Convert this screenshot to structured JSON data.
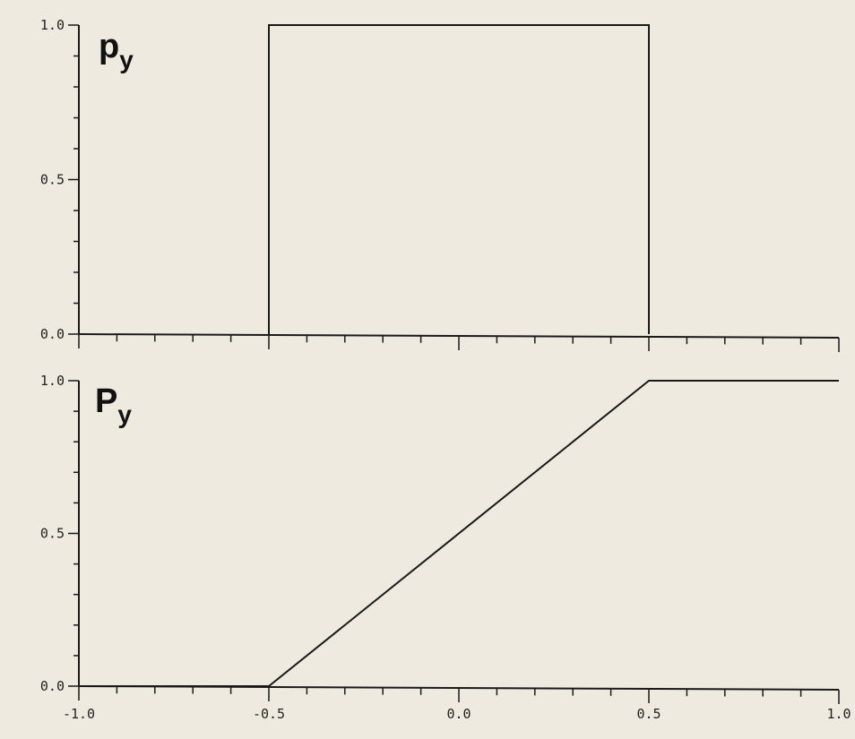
{
  "chart_data": [
    {
      "type": "line",
      "title": "",
      "panel_label": {
        "main": "p",
        "sub": "y"
      },
      "xlabel": "",
      "ylabel": "",
      "xlim": [
        -1.0,
        1.0
      ],
      "ylim": [
        0.0,
        1.0
      ],
      "y_tick_labels": [
        "0.0",
        "0.5",
        "1.0"
      ],
      "x_tick_labels": [],
      "grid": false,
      "series": [
        {
          "x": [
            -0.5,
            -0.5,
            0.5,
            0.5
          ],
          "y": [
            0.0,
            1.0,
            1.0,
            0.0
          ]
        }
      ]
    },
    {
      "type": "line",
      "title": "",
      "panel_label": {
        "main": "P",
        "sub": "y"
      },
      "xlabel": "",
      "ylabel": "",
      "xlim": [
        -1.0,
        1.0
      ],
      "ylim": [
        0.0,
        1.0
      ],
      "y_tick_labels": [
        "0.0",
        "0.5",
        "1.0"
      ],
      "x_tick_labels": [
        "-1.0",
        "-0.5",
        "0.0",
        "0.5",
        "1.0"
      ],
      "grid": false,
      "series": [
        {
          "x": [
            -1.0,
            -0.5,
            0.5,
            1.0
          ],
          "y": [
            0.0,
            0.0,
            1.0,
            1.0
          ]
        }
      ]
    }
  ],
  "colors": {
    "background": "#eeeadf",
    "ink": "#1a1a1a"
  }
}
